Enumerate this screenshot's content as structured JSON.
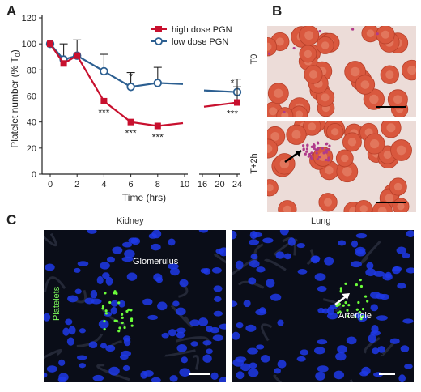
{
  "panels": {
    "a": "A",
    "b": "B",
    "c": "C"
  },
  "chart_data": {
    "type": "line",
    "ylabel": "Platelet number (% T",
    "ylabel_sub": "0",
    "ylabel_close": ")",
    "xlabel": "Time (hrs)",
    "ylim": [
      0,
      120
    ],
    "yticks": [
      0,
      20,
      40,
      60,
      80,
      100,
      120
    ],
    "xticks": [
      "0",
      "2",
      "4",
      "6",
      "8",
      "10",
      "16",
      "20",
      "24"
    ],
    "axis_break": "between 10 and 16",
    "legend_position": "top-right",
    "series": [
      {
        "name": "high dose PGN",
        "color": "#c8102e",
        "marker": "filled-square",
        "x": [
          0,
          1,
          2,
          4,
          6,
          8,
          24
        ],
        "y": [
          100,
          85,
          91,
          56,
          40,
          37,
          55
        ],
        "err": [
          0,
          0,
          0,
          0,
          0,
          0,
          12
        ]
      },
      {
        "name": "low dose PGN",
        "color": "#2c5f91",
        "marker": "open-circle",
        "x": [
          0,
          1,
          2,
          4,
          6,
          8,
          24
        ],
        "y": [
          100,
          88,
          91,
          79,
          67,
          70,
          63
        ],
        "err": [
          0,
          12,
          12,
          13,
          11,
          12,
          10
        ]
      }
    ],
    "annotations": [
      {
        "x": 4,
        "y": 56,
        "text": "***",
        "series": "high dose PGN"
      },
      {
        "x": 6,
        "y": 40,
        "text": "***",
        "series": "high dose PGN"
      },
      {
        "x": 8,
        "y": 37,
        "text": "***",
        "series": "high dose PGN"
      },
      {
        "x": 24,
        "y": 55,
        "text": "***",
        "series": "high dose PGN"
      },
      {
        "x": 6,
        "y": 67,
        "text": "*",
        "series": "low dose PGN"
      },
      {
        "x": 24,
        "y": 63,
        "text": "*",
        "series": "low dose PGN"
      }
    ]
  },
  "smear": {
    "top_label": "T0",
    "bottom_label": "T+2h"
  },
  "micrographs": {
    "kidney_title": "Kidney",
    "lung_title": "Lung",
    "glomerulus": "Glomerulus",
    "platelets": "Platelets",
    "arteriole": "Arteriole"
  }
}
